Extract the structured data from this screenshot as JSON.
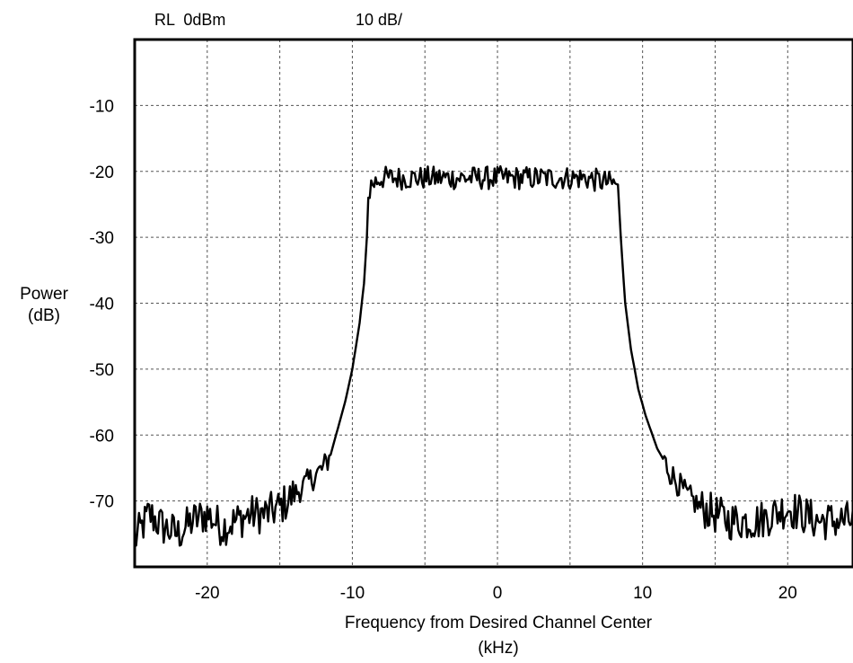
{
  "chart_data": {
    "type": "line",
    "header": {
      "reference_level": "RL  0dBm",
      "scale": "10 dB/"
    },
    "xlabel": [
      "Frequency from Desired Channel Center",
      "(kHz)"
    ],
    "ylabel": [
      "Power",
      "(dB)"
    ],
    "xlim": [
      -25,
      24.5
    ],
    "ylim": [
      -80,
      0
    ],
    "x_ticks": [
      -20,
      -10,
      0,
      10,
      20
    ],
    "x_tick_labels": [
      "-20",
      "-10",
      "0",
      "10",
      "20"
    ],
    "x_grid": [
      -20,
      -15,
      -10,
      -5,
      0,
      5,
      10,
      15,
      20
    ],
    "y_ticks": [
      -10,
      -20,
      -30,
      -40,
      -50,
      -60,
      -70
    ],
    "y_tick_labels": [
      "-10",
      "-20",
      "-30",
      "-40",
      "-50",
      "-60",
      "-70"
    ],
    "grid": true,
    "series": [
      {
        "color": "#000000",
        "points": [
          [
            -25,
            -76
          ],
          [
            -24,
            -72
          ],
          [
            -23,
            -74
          ],
          [
            -22,
            -75
          ],
          [
            -21,
            -73
          ],
          [
            -20,
            -72
          ],
          [
            -19,
            -74
          ],
          [
            -18,
            -73
          ],
          [
            -17,
            -72
          ],
          [
            -16,
            -72
          ],
          [
            -15,
            -71
          ],
          [
            -14,
            -69
          ],
          [
            -13,
            -67
          ],
          [
            -12,
            -65
          ],
          [
            -11.5,
            -63
          ],
          [
            -11,
            -59
          ],
          [
            -10.5,
            -55
          ],
          [
            -10,
            -50
          ],
          [
            -9.5,
            -43
          ],
          [
            -9.2,
            -37
          ],
          [
            -9.0,
            -30
          ],
          [
            -8.9,
            -24
          ],
          [
            -8.7,
            -22
          ],
          [
            -8,
            -21
          ],
          [
            -6,
            -21
          ],
          [
            -4,
            -21
          ],
          [
            -2,
            -21
          ],
          [
            0,
            -21
          ],
          [
            2,
            -21
          ],
          [
            4,
            -21
          ],
          [
            6,
            -21
          ],
          [
            8.3,
            -22
          ],
          [
            8.5,
            -30
          ],
          [
            8.8,
            -40
          ],
          [
            9.2,
            -47
          ],
          [
            9.7,
            -53
          ],
          [
            10.2,
            -57
          ],
          [
            11,
            -62
          ],
          [
            12,
            -66
          ],
          [
            13,
            -69
          ],
          [
            14,
            -71
          ],
          [
            15,
            -72
          ],
          [
            16,
            -73
          ],
          [
            17,
            -73
          ],
          [
            18,
            -73
          ],
          [
            19,
            -72
          ],
          [
            20,
            -71
          ],
          [
            21,
            -72
          ],
          [
            22,
            -73
          ],
          [
            23,
            -73
          ],
          [
            24.5,
            -73
          ]
        ]
      }
    ]
  }
}
